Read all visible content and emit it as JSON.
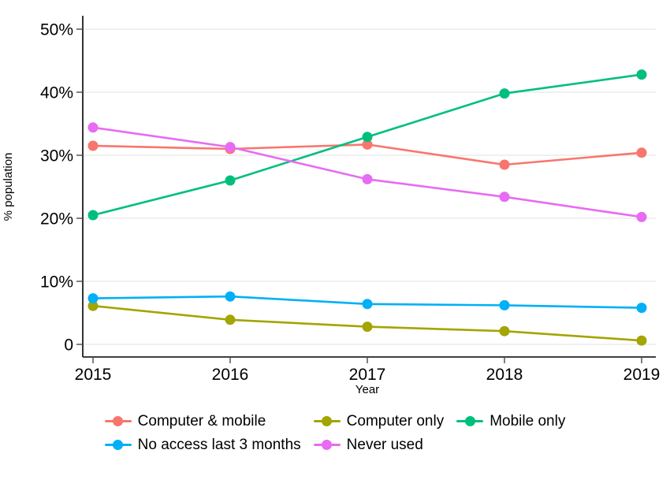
{
  "figure": {
    "background": "#ffffff",
    "text_color": "#000000",
    "axis_color": "#000000",
    "tick_color": "#4a4a4a",
    "gridline_color": "#e8e8e8"
  },
  "chart_data": {
    "type": "line",
    "title": "",
    "xlabel": "Year",
    "ylabel": "% population",
    "x": [
      2015,
      2016,
      2017,
      2018,
      2019
    ],
    "series": [
      {
        "name": "Computer & mobile",
        "color": "#F8766D",
        "values": [
          31.5,
          31.0,
          31.7,
          28.5,
          30.4
        ]
      },
      {
        "name": "Computer only",
        "color": "#A3A500",
        "values": [
          6.1,
          3.9,
          2.8,
          2.1,
          0.6
        ]
      },
      {
        "name": "Mobile only",
        "color": "#00BF7D",
        "values": [
          20.5,
          26.0,
          32.9,
          39.8,
          42.8
        ]
      },
      {
        "name": "No access last 3 months",
        "color": "#00B0F6",
        "values": [
          7.3,
          7.6,
          6.4,
          6.2,
          5.8
        ]
      },
      {
        "name": "Never used",
        "color": "#E76BF3",
        "values": [
          34.4,
          31.3,
          26.2,
          23.4,
          20.2
        ]
      }
    ],
    "ylim": [
      0,
      50
    ],
    "yticks": [
      {
        "value": 0,
        "label": "0"
      },
      {
        "value": 10,
        "label": "10%"
      },
      {
        "value": 20,
        "label": "20%"
      },
      {
        "value": 30,
        "label": "30%"
      },
      {
        "value": 40,
        "label": "40%"
      },
      {
        "value": 50,
        "label": "50%"
      }
    ],
    "grid": "horizontal",
    "legend_position": "bottom"
  }
}
